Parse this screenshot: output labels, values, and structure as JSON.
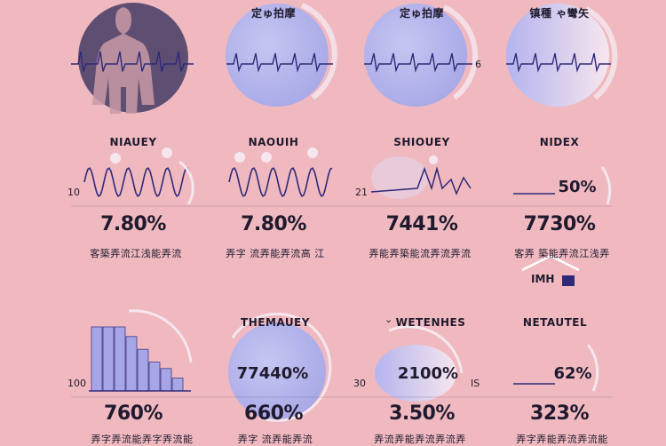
{
  "colors": {
    "background": "#f0b9c0",
    "navy": "#2f2a78",
    "periwinkle": "#a6a6e6",
    "dark_circle": "#5e4e72",
    "silhouette": "#c99aa6"
  },
  "row1": {
    "titles": [
      "",
      "定ゅ拍摩",
      "定ゅ拍摩",
      "镇種 ゃ彎矢"
    ],
    "side_label": "6"
  },
  "row2": {
    "titles": [
      "NIAUEY",
      "NAOUIH",
      "SHIOUEY",
      "NIDEX"
    ],
    "side_labels": [
      "10",
      "21"
    ],
    "inner_value": "50%",
    "values": [
      "7.80%",
      "7.80%",
      "7441%",
      "7730%"
    ],
    "subs": [
      "客築弄流江浅能弄流",
      "弄字 流弄能弄流高 江",
      "弄能弄築能流弄流弄流",
      "客弄 築能弄流江浅弄"
    ]
  },
  "house_label": "IMH",
  "row3": {
    "titles": [
      "",
      "THEMAUEY",
      "WETENHES",
      "NETAUTEL"
    ],
    "title_prefix_icon": "chevron-down-icon",
    "side_labels": [
      "100",
      "30",
      "IS"
    ],
    "inner_values": [
      "77440%",
      "2100%",
      "62%"
    ],
    "values": [
      "760%",
      "660%",
      "3.50%",
      "323%"
    ],
    "subs": [
      "弄字弄流能弄字弄流能",
      "弄字 流弄能弄流",
      "弄流弄能弄流弄流弄",
      "弄字弄能弄流弄流能"
    ]
  },
  "chart_data": {
    "type": "bar",
    "values": [
      100,
      100,
      100,
      85,
      65,
      45,
      35,
      20
    ],
    "title": "",
    "xlabel": "",
    "ylabel": ""
  }
}
